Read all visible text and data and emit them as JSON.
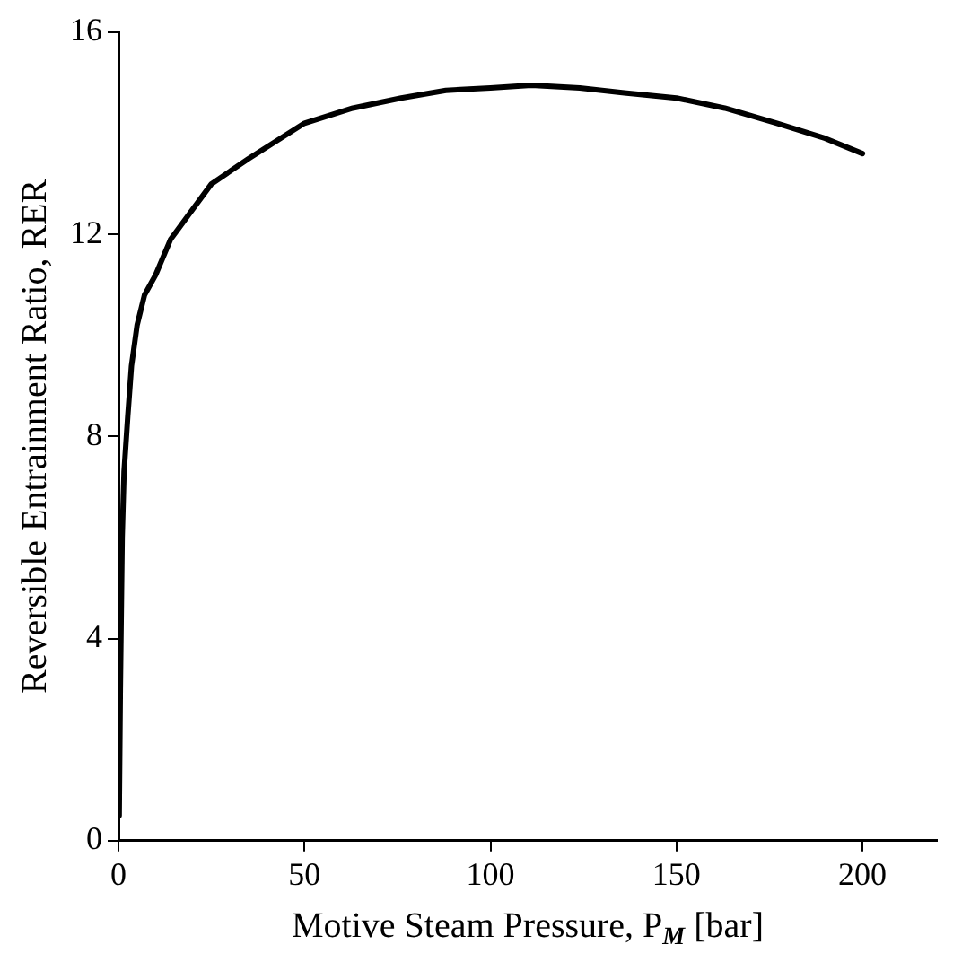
{
  "chart_data": {
    "type": "line",
    "xlabel": "Motive Steam Pressure, P$_{M}$ [bar]",
    "ylabel": "Reversible Entrainment Ratio, RER",
    "x": [
      0.2,
      0.5,
      1,
      1.5,
      2.5,
      3.5,
      5,
      7,
      10,
      14,
      18,
      25,
      35,
      50,
      63,
      76,
      88,
      100,
      111,
      124,
      136,
      150,
      163,
      177,
      190,
      200
    ],
    "series": [
      {
        "color": "#000000",
        "values": [
          0.5,
          3,
          6,
          7.3,
          8.4,
          9.4,
          10.2,
          10.8,
          11.2,
          11.9,
          12.3,
          13,
          13.5,
          14.2,
          14.5,
          14.7,
          14.85,
          14.9,
          14.95,
          14.9,
          14.8,
          14.7,
          14.5,
          14.2,
          13.9,
          13.6
        ]
      }
    ],
    "xlim": [
      0,
      220
    ],
    "xticks": [
      0,
      50,
      100,
      150,
      200
    ],
    "ylim": [
      0,
      16
    ],
    "yticks": [
      0,
      4,
      8,
      12,
      16
    ],
    "grid": false,
    "legend": false,
    "marker": "none",
    "line_style": "solid"
  }
}
